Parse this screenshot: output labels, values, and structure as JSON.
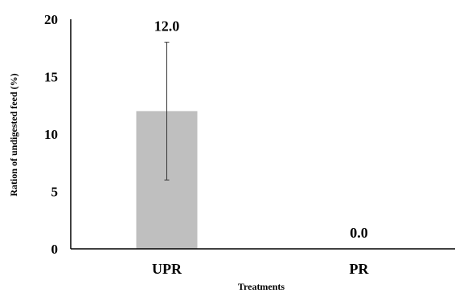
{
  "chart_data": {
    "type": "bar",
    "title": "",
    "xlabel": "Treatments",
    "ylabel": "Ration of undigested feed (%)",
    "categories": [
      "UPR",
      "PR"
    ],
    "values": [
      12.0,
      0.0
    ],
    "value_labels": [
      "12.0",
      "0.0"
    ],
    "error_bars": [
      {
        "low": 6.0,
        "high": 18.0
      },
      null
    ],
    "ylim": [
      0,
      20
    ],
    "yticks": [
      {
        "value": 0,
        "label": "0"
      },
      {
        "value": 5,
        "label": "5"
      },
      {
        "value": 10,
        "label": "10"
      },
      {
        "value": 15,
        "label": "15"
      },
      {
        "value": 20,
        "label": "20"
      }
    ],
    "grid": false,
    "legend": "none",
    "bar_color": "#bfbfbf",
    "axis_color": "#000000"
  }
}
